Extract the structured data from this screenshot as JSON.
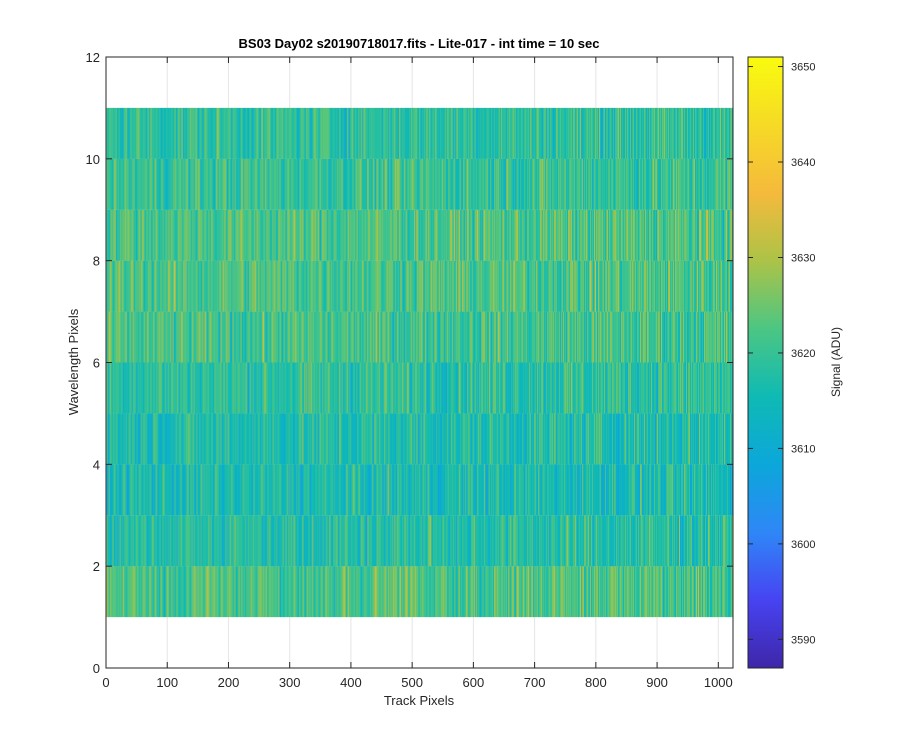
{
  "chart_data": {
    "type": "heatmap",
    "title": "BS03 Day02  s20190718017.fits - Lite-017 - int time = 10 sec",
    "xlabel": "Track Pixels",
    "ylabel": "Wavelength Pixels",
    "xlim": [
      0,
      1024
    ],
    "ylim": [
      0,
      12
    ],
    "xticks": [
      0,
      100,
      200,
      300,
      400,
      500,
      600,
      700,
      800,
      900,
      1000
    ],
    "yticks": [
      0,
      2,
      4,
      6,
      8,
      10,
      12
    ],
    "grid": true,
    "x_range": [
      1,
      1024
    ],
    "y_range": [
      1,
      11
    ],
    "rows": [
      1,
      2,
      3,
      4,
      5,
      6,
      7,
      8,
      9,
      10
    ],
    "row_mean_signal": [
      3622,
      3618,
      3616,
      3617,
      3619,
      3621,
      3622,
      3622,
      3620,
      3619
    ],
    "colormap": "parula",
    "colorbar": {
      "label": "Signal (ADU)",
      "range": [
        3587,
        3651
      ],
      "ticks": [
        3590,
        3600,
        3610,
        3620,
        3630,
        3640,
        3650
      ],
      "stops": [
        "#3e26a8",
        "#4743f2",
        "#2e87f7",
        "#0ca7da",
        "#0fbab4",
        "#4cc683",
        "#acc347",
        "#f5ba3c",
        "#f6da26",
        "#f9fb0e"
      ]
    }
  }
}
